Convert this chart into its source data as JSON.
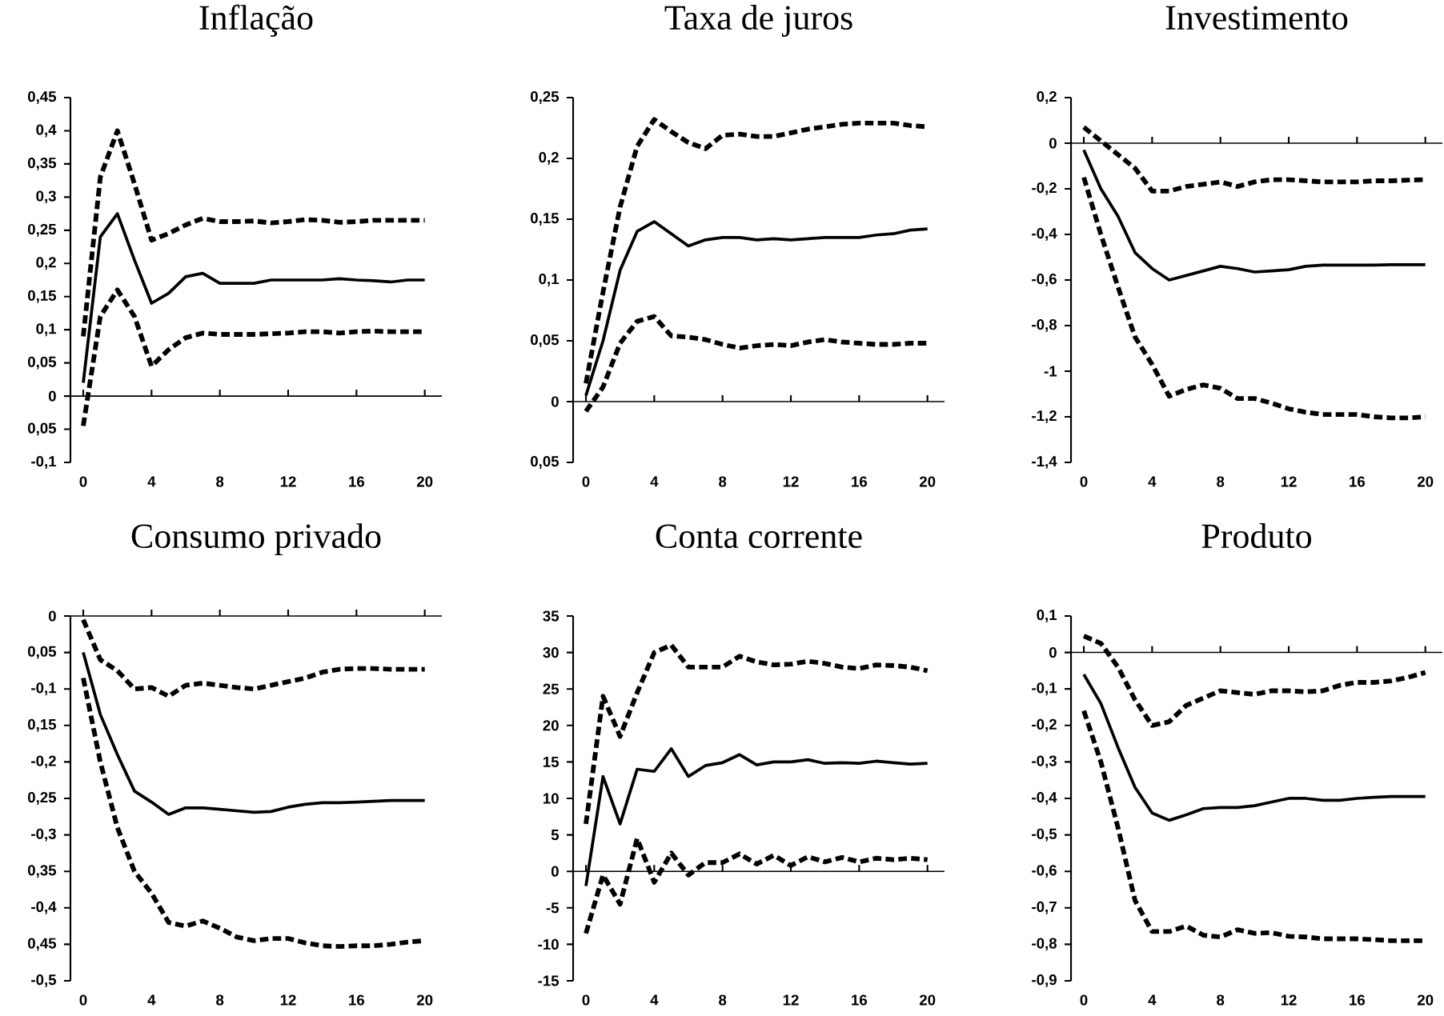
{
  "chart_data": [
    {
      "type": "line",
      "title": "Inflação",
      "x": [
        0,
        1,
        2,
        3,
        4,
        5,
        6,
        7,
        8,
        9,
        10,
        11,
        12,
        13,
        14,
        15,
        16,
        17,
        18,
        19,
        20
      ],
      "xlim": [
        -0.75,
        21
      ],
      "xticks": [
        0,
        4,
        8,
        12,
        16,
        20
      ],
      "ylim": [
        -0.1,
        0.45
      ],
      "yticks": [
        {
          "value": -0.1,
          "label": "-0,1"
        },
        {
          "value": -0.05,
          "label": "0,05"
        },
        {
          "value": 0,
          "label": "0"
        },
        {
          "value": 0.05,
          "label": "0,05"
        },
        {
          "value": 0.1,
          "label": "0,1"
        },
        {
          "value": 0.15,
          "label": "0,15"
        },
        {
          "value": 0.2,
          "label": "0,2"
        },
        {
          "value": 0.25,
          "label": "0,25"
        },
        {
          "value": 0.3,
          "label": "0,3"
        },
        {
          "value": 0.35,
          "label": "0,35"
        },
        {
          "value": 0.4,
          "label": "0,4"
        },
        {
          "value": 0.45,
          "label": "0,45"
        }
      ],
      "series": [
        {
          "color": "#000000",
          "line_style": "dashed",
          "values": [
            -0.045,
            0.12,
            0.16,
            0.12,
            0.045,
            0.07,
            0.088,
            0.095,
            0.093,
            0.093,
            0.093,
            0.094,
            0.095,
            0.097,
            0.097,
            0.095,
            0.097,
            0.098,
            0.097,
            0.097,
            0.097
          ]
        },
        {
          "color": "#000000",
          "line_style": "solid",
          "values": [
            0.02,
            0.24,
            0.275,
            0.205,
            0.14,
            0.155,
            0.18,
            0.185,
            0.17,
            0.17,
            0.17,
            0.175,
            0.175,
            0.175,
            0.175,
            0.177,
            0.175,
            0.174,
            0.172,
            0.175,
            0.175
          ]
        },
        {
          "color": "#000000",
          "line_style": "dashed",
          "values": [
            0.09,
            0.33,
            0.4,
            0.32,
            0.235,
            0.245,
            0.258,
            0.268,
            0.263,
            0.263,
            0.264,
            0.261,
            0.263,
            0.266,
            0.265,
            0.262,
            0.263,
            0.265,
            0.265,
            0.265,
            0.265
          ]
        }
      ]
    },
    {
      "type": "line",
      "title": "Taxa de juros",
      "x": [
        0,
        1,
        2,
        3,
        4,
        5,
        6,
        7,
        8,
        9,
        10,
        11,
        12,
        13,
        14,
        15,
        16,
        17,
        18,
        19,
        20
      ],
      "xlim": [
        -0.75,
        21
      ],
      "xticks": [
        0,
        4,
        8,
        12,
        16,
        20
      ],
      "ylim": [
        -0.05,
        0.25
      ],
      "yticks": [
        {
          "value": -0.05,
          "label": "0,05"
        },
        {
          "value": 0,
          "label": "0"
        },
        {
          "value": 0.05,
          "label": "0,05"
        },
        {
          "value": 0.1,
          "label": "0,1"
        },
        {
          "value": 0.15,
          "label": "0,15"
        },
        {
          "value": 0.2,
          "label": "0,2"
        },
        {
          "value": 0.25,
          "label": "0,25"
        }
      ],
      "series": [
        {
          "color": "#000000",
          "line_style": "dashed",
          "values": [
            -0.008,
            0.012,
            0.048,
            0.066,
            0.07,
            0.054,
            0.053,
            0.051,
            0.047,
            0.044,
            0.046,
            0.047,
            0.046,
            0.049,
            0.051,
            0.049,
            0.048,
            0.047,
            0.047,
            0.048,
            0.048
          ]
        },
        {
          "color": "#000000",
          "line_style": "solid",
          "values": [
            0.005,
            0.05,
            0.108,
            0.14,
            0.148,
            0.138,
            0.128,
            0.133,
            0.135,
            0.135,
            0.133,
            0.134,
            0.133,
            0.134,
            0.135,
            0.135,
            0.135,
            0.137,
            0.138,
            0.141,
            0.142
          ]
        },
        {
          "color": "#000000",
          "line_style": "dashed",
          "values": [
            0.015,
            0.09,
            0.16,
            0.21,
            0.232,
            0.222,
            0.213,
            0.208,
            0.219,
            0.22,
            0.218,
            0.218,
            0.221,
            0.224,
            0.226,
            0.228,
            0.229,
            0.229,
            0.229,
            0.227,
            0.226
          ]
        }
      ]
    },
    {
      "type": "line",
      "title": "Investimento",
      "x": [
        0,
        1,
        2,
        3,
        4,
        5,
        6,
        7,
        8,
        9,
        10,
        11,
        12,
        13,
        14,
        15,
        16,
        17,
        18,
        19,
        20
      ],
      "xlim": [
        -0.75,
        21
      ],
      "xticks": [
        0,
        4,
        8,
        12,
        16,
        20
      ],
      "ylim": [
        -1.4,
        0.2
      ],
      "yticks": [
        {
          "value": -1.4,
          "label": "-1,4"
        },
        {
          "value": -1.2,
          "label": "-1,2"
        },
        {
          "value": -1,
          "label": "-1"
        },
        {
          "value": -0.8,
          "label": "-0,8"
        },
        {
          "value": -0.6,
          "label": "-0,6"
        },
        {
          "value": -0.4,
          "label": "-0,4"
        },
        {
          "value": -0.2,
          "label": "-0,2"
        },
        {
          "value": 0,
          "label": "0"
        },
        {
          "value": 0.2,
          "label": "0,2"
        }
      ],
      "series": [
        {
          "color": "#000000",
          "line_style": "dashed",
          "values": [
            -0.15,
            -0.4,
            -0.63,
            -0.85,
            -0.97,
            -1.11,
            -1.08,
            -1.06,
            -1.075,
            -1.12,
            -1.12,
            -1.14,
            -1.165,
            -1.18,
            -1.19,
            -1.19,
            -1.19,
            -1.2,
            -1.205,
            -1.205,
            -1.2
          ]
        },
        {
          "color": "#000000",
          "line_style": "solid",
          "values": [
            -0.03,
            -0.2,
            -0.32,
            -0.48,
            -0.55,
            -0.6,
            -0.58,
            -0.56,
            -0.54,
            -0.55,
            -0.565,
            -0.56,
            -0.555,
            -0.54,
            -0.535,
            -0.535,
            -0.535,
            -0.535,
            -0.533,
            -0.533,
            -0.533
          ]
        },
        {
          "color": "#000000",
          "line_style": "dashed",
          "values": [
            0.07,
            0.01,
            -0.05,
            -0.11,
            -0.21,
            -0.21,
            -0.19,
            -0.18,
            -0.17,
            -0.19,
            -0.17,
            -0.16,
            -0.16,
            -0.165,
            -0.17,
            -0.17,
            -0.17,
            -0.165,
            -0.165,
            -0.162,
            -0.16
          ]
        }
      ]
    },
    {
      "type": "line",
      "title": "Consumo privado",
      "x": [
        0,
        1,
        2,
        3,
        4,
        5,
        6,
        7,
        8,
        9,
        10,
        11,
        12,
        13,
        14,
        15,
        16,
        17,
        18,
        19,
        20
      ],
      "xlim": [
        -0.75,
        21
      ],
      "xticks": [
        0,
        4,
        8,
        12,
        16,
        20
      ],
      "ylim": [
        -0.5,
        0
      ],
      "yticks": [
        {
          "value": -0.5,
          "label": "-0,5"
        },
        {
          "value": -0.45,
          "label": "0,45"
        },
        {
          "value": -0.4,
          "label": "-0,4"
        },
        {
          "value": -0.35,
          "label": "0,35"
        },
        {
          "value": -0.3,
          "label": "-0,3"
        },
        {
          "value": -0.25,
          "label": "0,25"
        },
        {
          "value": -0.2,
          "label": "-0,2"
        },
        {
          "value": -0.15,
          "label": "0,15"
        },
        {
          "value": -0.1,
          "label": "-0,1"
        },
        {
          "value": -0.05,
          "label": "0,05"
        },
        {
          "value": 0,
          "label": "0"
        }
      ],
      "series": [
        {
          "color": "#000000",
          "line_style": "dashed",
          "values": [
            -0.085,
            -0.2,
            -0.29,
            -0.35,
            -0.38,
            -0.42,
            -0.425,
            -0.418,
            -0.428,
            -0.44,
            -0.445,
            -0.442,
            -0.442,
            -0.448,
            -0.452,
            -0.453,
            -0.452,
            -0.452,
            -0.45,
            -0.447,
            -0.445
          ]
        },
        {
          "color": "#000000",
          "line_style": "solid",
          "values": [
            -0.05,
            -0.135,
            -0.19,
            -0.24,
            -0.255,
            -0.272,
            -0.263,
            -0.263,
            -0.265,
            -0.267,
            -0.269,
            -0.268,
            -0.262,
            -0.258,
            -0.256,
            -0.256,
            -0.255,
            -0.254,
            -0.253,
            -0.253,
            -0.253
          ]
        },
        {
          "color": "#000000",
          "line_style": "dashed",
          "values": [
            -0.005,
            -0.06,
            -0.075,
            -0.1,
            -0.098,
            -0.11,
            -0.095,
            -0.092,
            -0.095,
            -0.098,
            -0.1,
            -0.095,
            -0.09,
            -0.085,
            -0.077,
            -0.073,
            -0.072,
            -0.072,
            -0.073,
            -0.073,
            -0.073
          ]
        }
      ]
    },
    {
      "type": "line",
      "title": "Conta corrente",
      "x": [
        0,
        1,
        2,
        3,
        4,
        5,
        6,
        7,
        8,
        9,
        10,
        11,
        12,
        13,
        14,
        15,
        16,
        17,
        18,
        19,
        20
      ],
      "xlim": [
        -0.75,
        21
      ],
      "xticks": [
        0,
        4,
        8,
        12,
        16,
        20
      ],
      "ylim": [
        -15,
        35
      ],
      "yticks": [
        {
          "value": -15,
          "label": "-15"
        },
        {
          "value": -10,
          "label": "-10"
        },
        {
          "value": -5,
          "label": "-5"
        },
        {
          "value": 0,
          "label": "0"
        },
        {
          "value": 5,
          "label": "5"
        },
        {
          "value": 10,
          "label": "10"
        },
        {
          "value": 15,
          "label": "15"
        },
        {
          "value": 20,
          "label": "20"
        },
        {
          "value": 25,
          "label": "25"
        },
        {
          "value": 30,
          "label": "30"
        },
        {
          "value": 35,
          "label": "35"
        }
      ],
      "series": [
        {
          "color": "#000000",
          "line_style": "dashed",
          "values": [
            -8.5,
            -0.5,
            -4.5,
            4.5,
            -1.5,
            2.5,
            -0.5,
            1.2,
            1.2,
            2.4,
            1,
            2.2,
            0.8,
            2,
            1.3,
            1.9,
            1.3,
            1.8,
            1.6,
            1.8,
            1.6
          ]
        },
        {
          "color": "#000000",
          "line_style": "solid",
          "values": [
            -2,
            13,
            6.5,
            14,
            13.7,
            16.8,
            13,
            14.5,
            14.9,
            16,
            14.6,
            15,
            15,
            15.3,
            14.8,
            14.9,
            14.8,
            15.1,
            14.9,
            14.7,
            14.8
          ]
        },
        {
          "color": "#000000",
          "line_style": "dashed",
          "values": [
            6.5,
            24,
            18.5,
            24.5,
            30,
            31,
            28,
            28,
            28,
            29.5,
            28.7,
            28.3,
            28.4,
            28.8,
            28.5,
            28,
            27.8,
            28.3,
            28.2,
            28,
            27.5
          ]
        }
      ]
    },
    {
      "type": "line",
      "title": "Produto",
      "x": [
        0,
        1,
        2,
        3,
        4,
        5,
        6,
        7,
        8,
        9,
        10,
        11,
        12,
        13,
        14,
        15,
        16,
        17,
        18,
        19,
        20
      ],
      "xlim": [
        -0.75,
        21
      ],
      "xticks": [
        0,
        4,
        8,
        12,
        16,
        20
      ],
      "ylim": [
        -0.9,
        0.1
      ],
      "yticks": [
        {
          "value": -0.9,
          "label": "-0,9"
        },
        {
          "value": -0.8,
          "label": "-0,8"
        },
        {
          "value": -0.7,
          "label": "-0,7"
        },
        {
          "value": -0.6,
          "label": "-0,6"
        },
        {
          "value": -0.5,
          "label": "-0,5"
        },
        {
          "value": -0.4,
          "label": "-0,4"
        },
        {
          "value": -0.3,
          "label": "-0,3"
        },
        {
          "value": -0.2,
          "label": "-0,2"
        },
        {
          "value": -0.1,
          "label": "-0,1"
        },
        {
          "value": 0,
          "label": "0"
        },
        {
          "value": 0.1,
          "label": "0,1"
        }
      ],
      "series": [
        {
          "color": "#000000",
          "line_style": "dashed",
          "values": [
            -0.16,
            -0.3,
            -0.48,
            -0.68,
            -0.765,
            -0.765,
            -0.75,
            -0.775,
            -0.78,
            -0.76,
            -0.77,
            -0.768,
            -0.778,
            -0.78,
            -0.785,
            -0.785,
            -0.785,
            -0.787,
            -0.79,
            -0.79,
            -0.79
          ]
        },
        {
          "color": "#000000",
          "line_style": "solid",
          "values": [
            -0.06,
            -0.14,
            -0.26,
            -0.37,
            -0.44,
            -0.46,
            -0.445,
            -0.428,
            -0.425,
            -0.425,
            -0.42,
            -0.41,
            -0.4,
            -0.4,
            -0.405,
            -0.405,
            -0.4,
            -0.397,
            -0.395,
            -0.395,
            -0.395
          ]
        },
        {
          "color": "#000000",
          "line_style": "dashed",
          "values": [
            0.045,
            0.025,
            -0.04,
            -0.13,
            -0.2,
            -0.19,
            -0.145,
            -0.125,
            -0.105,
            -0.11,
            -0.115,
            -0.105,
            -0.105,
            -0.108,
            -0.105,
            -0.09,
            -0.082,
            -0.082,
            -0.078,
            -0.068,
            -0.055
          ]
        }
      ]
    }
  ]
}
